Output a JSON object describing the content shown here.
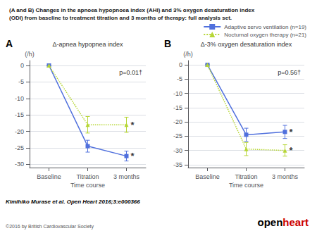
{
  "title": [
    "(A and B) Changes in the apnoea hypopnoea index (AHI) and 3% oxygen desaturation index",
    "(ODI) from baseline to treatment titration and 3 months of therapy: full analysis set."
  ],
  "legend": "top right",
  "citation": "Kimihiko Murase et al. Open Heart 2016;3:e000366",
  "copyright": "©2016 by British Cardiovascular Society",
  "logo": [
    {
      "text": "open"
    },
    {
      "text": "heart",
      "color": "#cc0000"
    }
  ],
  "chart_data": [
    {
      "type": "line",
      "panel_label": "A",
      "title": "Δ-apnea hypopnea index",
      "xlabel": "Time course",
      "ylabel": "(/h)",
      "categories": [
        "Baseline",
        "Titration",
        "3 months"
      ],
      "ylim": [
        -31,
        1.5
      ],
      "yticks": [
        0,
        -5,
        -10,
        -15,
        -20,
        -25,
        -30
      ],
      "grid": true,
      "series": [
        {
          "name": "Adaptive servo ventilation (n=19)",
          "marker": "square",
          "line_style": "solid",
          "values": [
            0,
            -24.5,
            -27.5
          ],
          "errors": [
            0,
            1.8,
            1.5
          ]
        },
        {
          "name": "Nocturnal oxygen therapy (n=21)",
          "marker": "triangle",
          "line_style": "dotted",
          "values": [
            0,
            -18.0,
            -18.0
          ],
          "errors": [
            0,
            2.5,
            2.3
          ]
        }
      ],
      "annotations": [
        {
          "text": "p=0.01†"
        },
        {
          "text": "*",
          "x": "3 months",
          "y": -18.0
        },
        {
          "text": "*",
          "x": "3 months",
          "y": -27.5
        }
      ]
    },
    {
      "type": "line",
      "panel_label": "B",
      "title": "Δ-3% oxygen desaturation index",
      "xlabel": "Time course",
      "ylabel": "(/h)",
      "categories": [
        "Baseline",
        "Titration",
        "3 months"
      ],
      "ylim": [
        -36,
        1.5
      ],
      "yticks": [
        0,
        -5,
        -10,
        -15,
        -20,
        -25,
        -30,
        -35
      ],
      "grid": true,
      "series": [
        {
          "name": "Adaptive servo ventilation (n=19)",
          "marker": "square",
          "line_style": "solid",
          "values": [
            0,
            -24.5,
            -23.5
          ],
          "errors": [
            0,
            2.3,
            2.3
          ]
        },
        {
          "name": "Nocturnal oxygen therapy (n=21)",
          "marker": "triangle",
          "line_style": "dotted",
          "values": [
            0,
            -29.5,
            -30.0
          ],
          "errors": [
            0,
            2.3,
            2.0
          ]
        }
      ],
      "annotations": [
        {
          "text": "p=0.56†"
        },
        {
          "text": "*",
          "x": "3 months",
          "y": -23.5
        },
        {
          "text": "*",
          "x": "3 months",
          "y": -30.0
        }
      ]
    }
  ]
}
